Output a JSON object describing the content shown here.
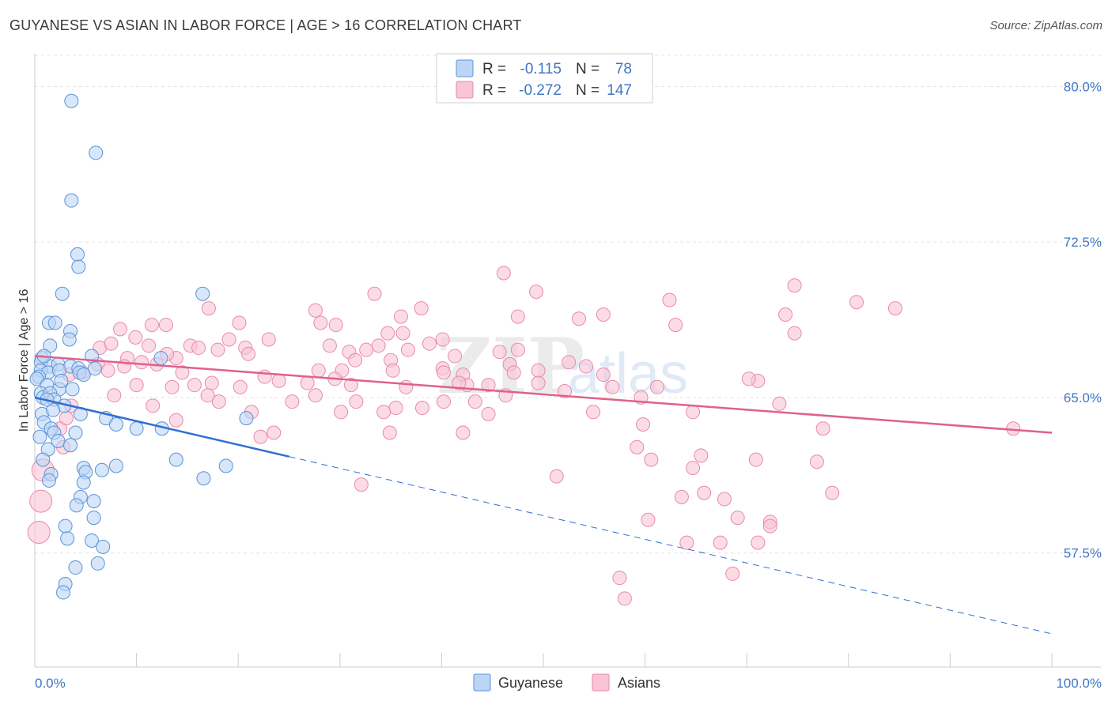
{
  "header": {
    "title": "GUYANESE VS ASIAN IN LABOR FORCE | AGE > 16 CORRELATION CHART",
    "source": "Source: ZipAtlas.com"
  },
  "watermark": {
    "zip": "ZIP",
    "atlas": "atlas"
  },
  "colors": {
    "guyanese_fill": "#bcd5f5",
    "guyanese_stroke": "#5b93d6",
    "guyanese_line": "#2f6fd1",
    "asian_fill": "#f8c4d6",
    "asian_stroke": "#e989aa",
    "asian_line": "#e0608c",
    "tick_label": "#3f76c4"
  },
  "chart_data": {
    "type": "scatter",
    "title": "GUYANESE VS ASIAN IN LABOR FORCE | AGE > 16 CORRELATION CHART",
    "xlabel": "",
    "ylabel": "In Labor Force | Age > 16",
    "xlim": [
      0,
      100
    ],
    "ylim": [
      52.0,
      81.5
    ],
    "x_tick_labels": [
      "0.0%",
      "100.0%"
    ],
    "y_ticks": [
      57.5,
      65.0,
      72.5,
      80.0
    ],
    "y_tick_labels": [
      "57.5%",
      "65.0%",
      "72.5%",
      "80.0%"
    ],
    "grid": "horizontal dashed",
    "legend": {
      "placement": "top-center",
      "entries": [
        {
          "name": "Guyanese",
          "r_label": "R =",
          "r": "-0.115",
          "n_label": "N =",
          "n": "78"
        },
        {
          "name": "Asians",
          "r_label": "R =",
          "r": "-0.272",
          "n_label": "N =",
          "n": "147"
        }
      ]
    },
    "series": [
      {
        "name": "Guyanese",
        "trend": {
          "x1": 0,
          "y1": 65.0,
          "x2": 100,
          "y2": 53.6,
          "solid_until_x": 25
        },
        "points": [
          [
            3.6,
            79.3
          ],
          [
            6.0,
            76.8
          ],
          [
            3.6,
            74.5
          ],
          [
            4.2,
            71.9
          ],
          [
            4.3,
            71.3
          ],
          [
            2.7,
            70.0
          ],
          [
            16.5,
            70.0
          ],
          [
            1.4,
            68.6
          ],
          [
            2.0,
            68.6
          ],
          [
            3.5,
            68.2
          ],
          [
            3.4,
            67.8
          ],
          [
            1.5,
            67.5
          ],
          [
            0.7,
            66.9
          ],
          [
            0.6,
            66.7
          ],
          [
            5.6,
            67.0
          ],
          [
            12.4,
            66.9
          ],
          [
            1.5,
            66.5
          ],
          [
            2.3,
            66.6
          ],
          [
            3.5,
            66.5
          ],
          [
            4.3,
            66.4
          ],
          [
            5.9,
            66.4
          ],
          [
            0.6,
            66.3
          ],
          [
            1.3,
            66.2
          ],
          [
            2.4,
            66.3
          ],
          [
            4.4,
            66.2
          ],
          [
            0.4,
            66.0
          ],
          [
            0.2,
            65.9
          ],
          [
            1.2,
            65.6
          ],
          [
            2.4,
            65.4
          ],
          [
            3.7,
            65.4
          ],
          [
            0.6,
            65.2
          ],
          [
            0.8,
            65.0
          ],
          [
            1.5,
            65.2
          ],
          [
            1.9,
            64.9
          ],
          [
            2.9,
            64.6
          ],
          [
            0.7,
            64.2
          ],
          [
            4.5,
            64.2
          ],
          [
            7.0,
            64.0
          ],
          [
            20.8,
            64.0
          ],
          [
            0.9,
            63.8
          ],
          [
            1.6,
            63.5
          ],
          [
            8.0,
            63.7
          ],
          [
            10.0,
            63.5
          ],
          [
            12.5,
            63.5
          ],
          [
            1.9,
            63.3
          ],
          [
            4.0,
            63.3
          ],
          [
            2.3,
            62.9
          ],
          [
            3.5,
            62.7
          ],
          [
            1.3,
            62.5
          ],
          [
            0.8,
            62.0
          ],
          [
            13.9,
            62.0
          ],
          [
            4.8,
            61.6
          ],
          [
            8.0,
            61.7
          ],
          [
            18.8,
            61.7
          ],
          [
            5.0,
            61.4
          ],
          [
            6.6,
            61.5
          ],
          [
            1.6,
            61.3
          ],
          [
            16.6,
            61.1
          ],
          [
            4.8,
            60.9
          ],
          [
            4.5,
            60.2
          ],
          [
            5.8,
            60.0
          ],
          [
            4.1,
            59.8
          ],
          [
            5.8,
            59.2
          ],
          [
            3.0,
            58.8
          ],
          [
            3.2,
            58.2
          ],
          [
            5.6,
            58.1
          ],
          [
            6.7,
            57.8
          ],
          [
            6.2,
            57.0
          ],
          [
            4.0,
            56.8
          ],
          [
            3.0,
            56.0
          ],
          [
            2.8,
            55.6
          ],
          [
            1.4,
            61.0
          ],
          [
            1.8,
            64.4
          ],
          [
            2.6,
            65.8
          ],
          [
            4.8,
            66.1
          ],
          [
            0.9,
            67.0
          ],
          [
            1.2,
            64.9
          ],
          [
            0.5,
            63.1
          ]
        ]
      },
      {
        "name": "Asians",
        "trend": {
          "x1": 0,
          "y1": 67.0,
          "x2": 100,
          "y2": 63.3
        },
        "points": [
          [
            46.1,
            71.0
          ],
          [
            33.4,
            70.0
          ],
          [
            49.3,
            70.1
          ],
          [
            74.7,
            70.4
          ],
          [
            84.6,
            69.3
          ],
          [
            80.8,
            69.6
          ],
          [
            73.8,
            69.0
          ],
          [
            74.7,
            68.1
          ],
          [
            27.6,
            69.2
          ],
          [
            28.1,
            68.6
          ],
          [
            32.6,
            67.3
          ],
          [
            29.6,
            68.5
          ],
          [
            38.0,
            69.3
          ],
          [
            36.0,
            68.9
          ],
          [
            47.5,
            68.9
          ],
          [
            53.5,
            68.8
          ],
          [
            55.9,
            69.0
          ],
          [
            62.4,
            69.7
          ],
          [
            63.0,
            68.5
          ],
          [
            17.1,
            69.3
          ],
          [
            20.1,
            68.6
          ],
          [
            11.5,
            68.5
          ],
          [
            12.9,
            68.5
          ],
          [
            8.4,
            68.3
          ],
          [
            9.9,
            67.9
          ],
          [
            6.4,
            67.4
          ],
          [
            7.5,
            67.6
          ],
          [
            11.2,
            67.5
          ],
          [
            15.3,
            67.5
          ],
          [
            19.1,
            67.8
          ],
          [
            23.0,
            67.8
          ],
          [
            29.0,
            67.5
          ],
          [
            33.8,
            67.5
          ],
          [
            34.7,
            68.1
          ],
          [
            38.8,
            67.6
          ],
          [
            40.1,
            67.8
          ],
          [
            36.2,
            68.1
          ],
          [
            36.7,
            67.3
          ],
          [
            41.3,
            67.0
          ],
          [
            30.9,
            67.2
          ],
          [
            20.7,
            67.4
          ],
          [
            16.1,
            67.4
          ],
          [
            18.0,
            67.3
          ],
          [
            21.0,
            67.1
          ],
          [
            13.9,
            66.9
          ],
          [
            13.0,
            67.1
          ],
          [
            9.1,
            66.9
          ],
          [
            10.5,
            66.7
          ],
          [
            12.0,
            66.6
          ],
          [
            8.8,
            66.5
          ],
          [
            6.2,
            66.6
          ],
          [
            4.7,
            66.2
          ],
          [
            3.4,
            66.1
          ],
          [
            7.2,
            66.3
          ],
          [
            14.5,
            66.2
          ],
          [
            22.6,
            66.0
          ],
          [
            27.9,
            66.3
          ],
          [
            30.2,
            66.3
          ],
          [
            29.5,
            65.9
          ],
          [
            31.5,
            66.8
          ],
          [
            35.0,
            66.8
          ],
          [
            35.2,
            66.3
          ],
          [
            40.1,
            66.4
          ],
          [
            42.1,
            66.1
          ],
          [
            45.7,
            67.2
          ],
          [
            46.7,
            66.6
          ],
          [
            47.5,
            67.3
          ],
          [
            47.1,
            66.2
          ],
          [
            49.5,
            66.3
          ],
          [
            52.5,
            66.7
          ],
          [
            54.2,
            66.5
          ],
          [
            55.9,
            66.1
          ],
          [
            49.5,
            65.7
          ],
          [
            44.6,
            65.6
          ],
          [
            42.5,
            65.6
          ],
          [
            41.7,
            65.7
          ],
          [
            40.2,
            66.2
          ],
          [
            36.5,
            65.5
          ],
          [
            31.1,
            65.6
          ],
          [
            26.8,
            65.7
          ],
          [
            24.0,
            65.8
          ],
          [
            20.2,
            65.5
          ],
          [
            17.4,
            65.7
          ],
          [
            15.7,
            65.6
          ],
          [
            13.5,
            65.5
          ],
          [
            10.0,
            65.6
          ],
          [
            7.8,
            65.1
          ],
          [
            3.6,
            64.6
          ],
          [
            2.5,
            63.5
          ],
          [
            3.1,
            64.0
          ],
          [
            2.8,
            62.6
          ],
          [
            35.5,
            64.5
          ],
          [
            40.2,
            64.8
          ],
          [
            44.6,
            64.2
          ],
          [
            43.3,
            64.8
          ],
          [
            38.1,
            64.5
          ],
          [
            34.3,
            64.3
          ],
          [
            31.6,
            64.8
          ],
          [
            30.1,
            64.3
          ],
          [
            27.6,
            65.1
          ],
          [
            25.3,
            64.8
          ],
          [
            18.1,
            64.8
          ],
          [
            11.6,
            64.6
          ],
          [
            13.9,
            63.9
          ],
          [
            17.0,
            65.1
          ],
          [
            21.3,
            64.3
          ],
          [
            23.5,
            63.3
          ],
          [
            22.2,
            63.1
          ],
          [
            34.9,
            63.3
          ],
          [
            42.1,
            63.3
          ],
          [
            46.3,
            65.1
          ],
          [
            52.1,
            65.3
          ],
          [
            54.9,
            64.3
          ],
          [
            59.6,
            65.0
          ],
          [
            61.2,
            65.5
          ],
          [
            64.7,
            64.3
          ],
          [
            71.1,
            65.8
          ],
          [
            73.2,
            64.7
          ],
          [
            70.2,
            65.9
          ],
          [
            59.8,
            63.7
          ],
          [
            56.8,
            65.5
          ],
          [
            59.2,
            62.6
          ],
          [
            60.6,
            62.0
          ],
          [
            64.7,
            61.6
          ],
          [
            65.5,
            62.2
          ],
          [
            70.9,
            62.0
          ],
          [
            63.6,
            60.2
          ],
          [
            65.8,
            60.4
          ],
          [
            67.8,
            60.1
          ],
          [
            76.9,
            61.9
          ],
          [
            77.5,
            63.5
          ],
          [
            96.2,
            63.5
          ],
          [
            78.4,
            60.4
          ],
          [
            60.3,
            59.1
          ],
          [
            69.1,
            59.2
          ],
          [
            72.3,
            59.0
          ],
          [
            72.3,
            58.8
          ],
          [
            64.1,
            58.0
          ],
          [
            67.4,
            58.0
          ],
          [
            68.6,
            56.5
          ],
          [
            71.1,
            58.0
          ],
          [
            57.5,
            56.3
          ],
          [
            58.0,
            55.3
          ],
          [
            51.3,
            61.2
          ],
          [
            0.8,
            61.5
          ],
          [
            0.6,
            60.0
          ],
          [
            0.4,
            58.5
          ],
          [
            32.1,
            60.8
          ]
        ]
      }
    ]
  }
}
